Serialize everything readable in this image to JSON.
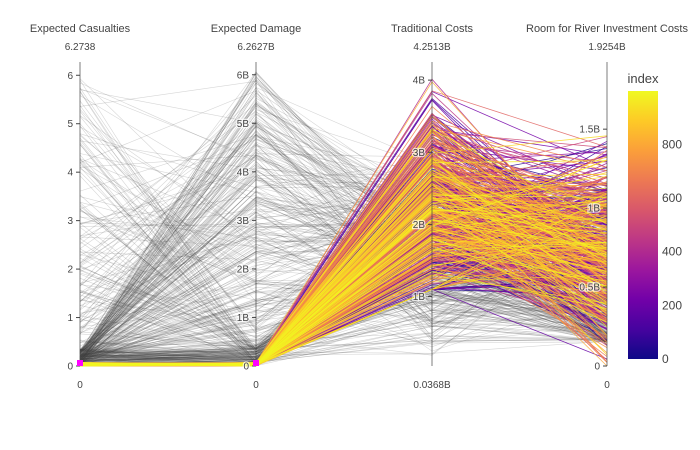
{
  "chart_data": {
    "type": "parallel-coordinates",
    "dimensions": [
      {
        "label": "Expected Casualties",
        "max_label": "6.2738",
        "min_label": "0",
        "range": [
          0,
          6.2738
        ],
        "ticks": [
          {
            "v": 0,
            "t": "0"
          },
          {
            "v": 1,
            "t": "1"
          },
          {
            "v": 2,
            "t": "2"
          },
          {
            "v": 3,
            "t": "3"
          },
          {
            "v": 4,
            "t": "4"
          },
          {
            "v": 5,
            "t": "5"
          },
          {
            "v": 6,
            "t": "6"
          }
        ],
        "constraint_range": [
          0,
          0.1
        ]
      },
      {
        "label": "Expected Damage",
        "max_label": "6.2627B",
        "min_label": "0",
        "range": [
          0,
          6.2627
        ],
        "ticks": [
          {
            "v": 0,
            "t": "0"
          },
          {
            "v": 1,
            "t": "1B"
          },
          {
            "v": 2,
            "t": "2B"
          },
          {
            "v": 3,
            "t": "3B"
          },
          {
            "v": 4,
            "t": "4B"
          },
          {
            "v": 5,
            "t": "5B"
          },
          {
            "v": 6,
            "t": "6B"
          }
        ],
        "constraint_range": [
          0,
          0.1
        ]
      },
      {
        "label": "Traditional Costs",
        "max_label": "4.2513B",
        "min_label": "0.0368B",
        "range": [
          0.0368,
          4.2513
        ],
        "ticks": [
          {
            "v": 1,
            "t": "1B"
          },
          {
            "v": 2,
            "t": "2B"
          },
          {
            "v": 3,
            "t": "3B"
          },
          {
            "v": 4,
            "t": "4B"
          }
        ]
      },
      {
        "label": "Room for River Investment Costs",
        "max_label": "1.9254B",
        "min_label": "0",
        "range": [
          0,
          1.9254
        ],
        "ticks": [
          {
            "v": 0,
            "t": "0"
          },
          {
            "v": 0.5,
            "t": "0.5B"
          },
          {
            "v": 1,
            "t": "1B"
          },
          {
            "v": 1.5,
            "t": "1.5B"
          }
        ]
      }
    ],
    "colorbar": {
      "title": "index",
      "range": [
        0,
        999
      ],
      "ticks": [
        {
          "v": 0,
          "t": "0"
        },
        {
          "v": 200,
          "t": "200"
        },
        {
          "v": 400,
          "t": "400"
        },
        {
          "v": 600,
          "t": "600"
        },
        {
          "v": 800,
          "t": "800"
        }
      ],
      "colorscale": [
        "#0d0887",
        "#46039f",
        "#7201a8",
        "#9c179e",
        "#bd3786",
        "#d8576b",
        "#ed7953",
        "#fb9f3a",
        "#fdca26",
        "#f0f921"
      ]
    },
    "unselected_line_color": "#444444",
    "brush_color": "#ff00ff",
    "n_lines": 1000
  }
}
